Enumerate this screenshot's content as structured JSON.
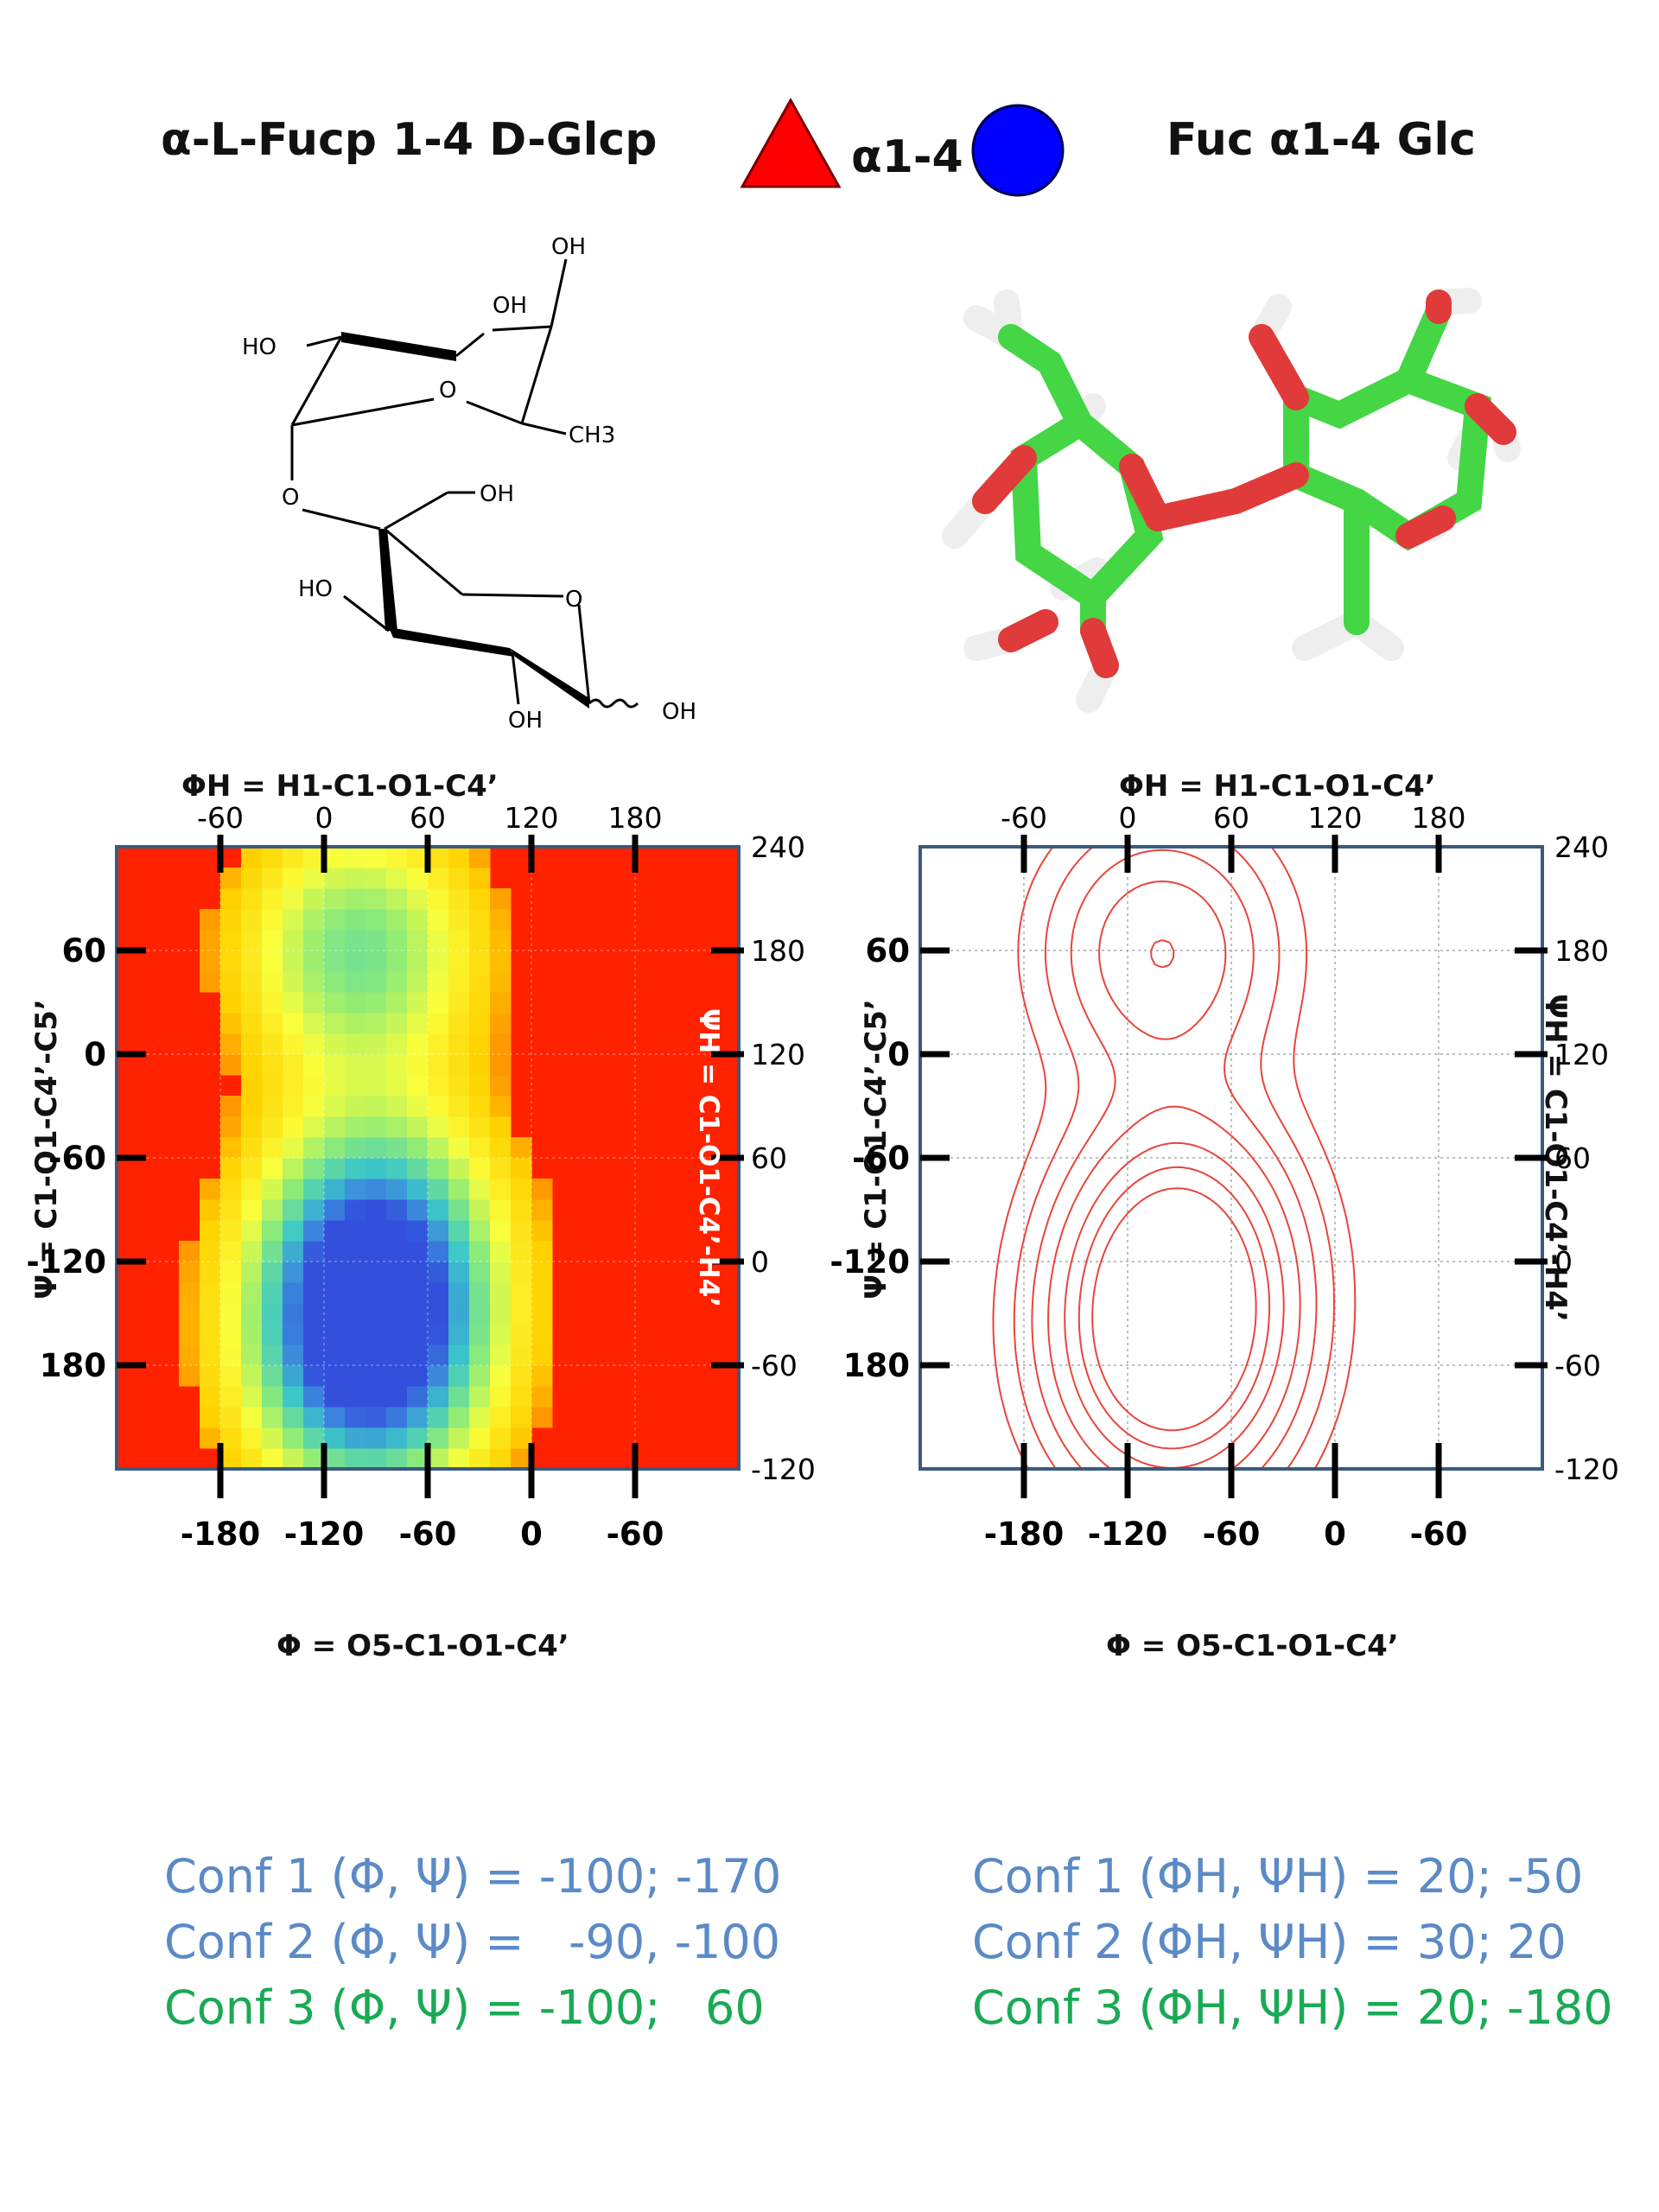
{
  "header": {
    "left_title": "α-L-Fucp 1-4 D-Glcp",
    "linkage_label": "α1-4",
    "right_title": "Fuc α1-4 Glc"
  },
  "structure": {
    "labels": [
      "OH",
      "OH",
      "HO",
      "O",
      "CH3",
      "O",
      "OH",
      "HO",
      "O",
      "OH",
      "OH"
    ]
  },
  "colors": {
    "fucose_symbol": "#ff0000",
    "glucose_symbol": "#0000ff",
    "frame": "#3a5a80",
    "contour": "#e8453c",
    "conf_blue": "#5b8ac6",
    "conf_green": "#1aaa55",
    "heat_background": "#ff2200",
    "carbon": "#44d644",
    "oxygen": "#e03a3a",
    "hydrogen": "#eeeeee"
  },
  "chart_data": [
    {
      "type": "heatmap",
      "top_axis_label": "ΦH = H1-C1-O1-C4’",
      "bottom_axis_label": "Φ = O5-C1-O1-C4’",
      "left_axis_label": "Ψ = C1-O1-C4’-C5’",
      "right_axis_label": "ΨH = C1-O1-C4’-H4’",
      "top_ticks": [
        "-60",
        "0",
        "60",
        "120",
        "180"
      ],
      "bottom_ticks": [
        "-180",
        "-120",
        "-60",
        "0",
        "-60"
      ],
      "left_ticks": [
        "60",
        "0",
        "-60",
        "-120",
        "180"
      ],
      "right_ticks": [
        "240",
        "180",
        "120",
        "60",
        "0",
        "-60",
        "-120"
      ],
      "xlim": [
        -240,
        120
      ],
      "ylim": [
        -240,
        120
      ],
      "grid": true,
      "hotspots": [
        {
          "x": -95,
          "y": -175,
          "level": 1.0
        },
        {
          "x": -90,
          "y": -110,
          "level": 0.75
        },
        {
          "x": -100,
          "y": 60,
          "level": 0.55
        }
      ]
    },
    {
      "type": "contour",
      "top_axis_label": "ΦH = H1-C1-O1-C4’",
      "bottom_axis_label": "Φ = O5-C1-O1-C4’",
      "left_axis_label": "Ψ = C1-O1-C4’-C5’",
      "right_axis_label": "ΨH = C1-O1-C4’-H4’",
      "top_ticks": [
        "-60",
        "0",
        "60",
        "120",
        "180"
      ],
      "bottom_ticks": [
        "-180",
        "-120",
        "-60",
        "0",
        "-60"
      ],
      "left_ticks": [
        "60",
        "0",
        "-60",
        "-120",
        "180"
      ],
      "right_ticks": [
        "240",
        "180",
        "120",
        "60",
        "0",
        "-60",
        "-120"
      ],
      "xlim": [
        -240,
        120
      ],
      "ylim": [
        -240,
        120
      ],
      "grid": true,
      "hotspots": [
        {
          "x": -95,
          "y": -175,
          "level": 1.0
        },
        {
          "x": -90,
          "y": -110,
          "level": 0.75
        },
        {
          "x": -100,
          "y": 60,
          "level": 0.55
        }
      ]
    }
  ],
  "conformations": {
    "left": [
      {
        "text": "Conf 1 (Φ, Ψ) = -100; -170",
        "color": "blue"
      },
      {
        "text": "Conf 2 (Φ, Ψ) =   -90, -100",
        "color": "blue"
      },
      {
        "text": "Conf 3 (Φ, Ψ) = -100;   60",
        "color": "green"
      }
    ],
    "right": [
      {
        "text": "Conf 1 (ΦH, ΨH) = 20; -50",
        "color": "blue"
      },
      {
        "text": "Conf 2 (ΦH, ΨH) = 30; 20",
        "color": "blue"
      },
      {
        "text": "Conf 3 (ΦH, ΨH) = 20; -180",
        "color": "green"
      }
    ]
  }
}
